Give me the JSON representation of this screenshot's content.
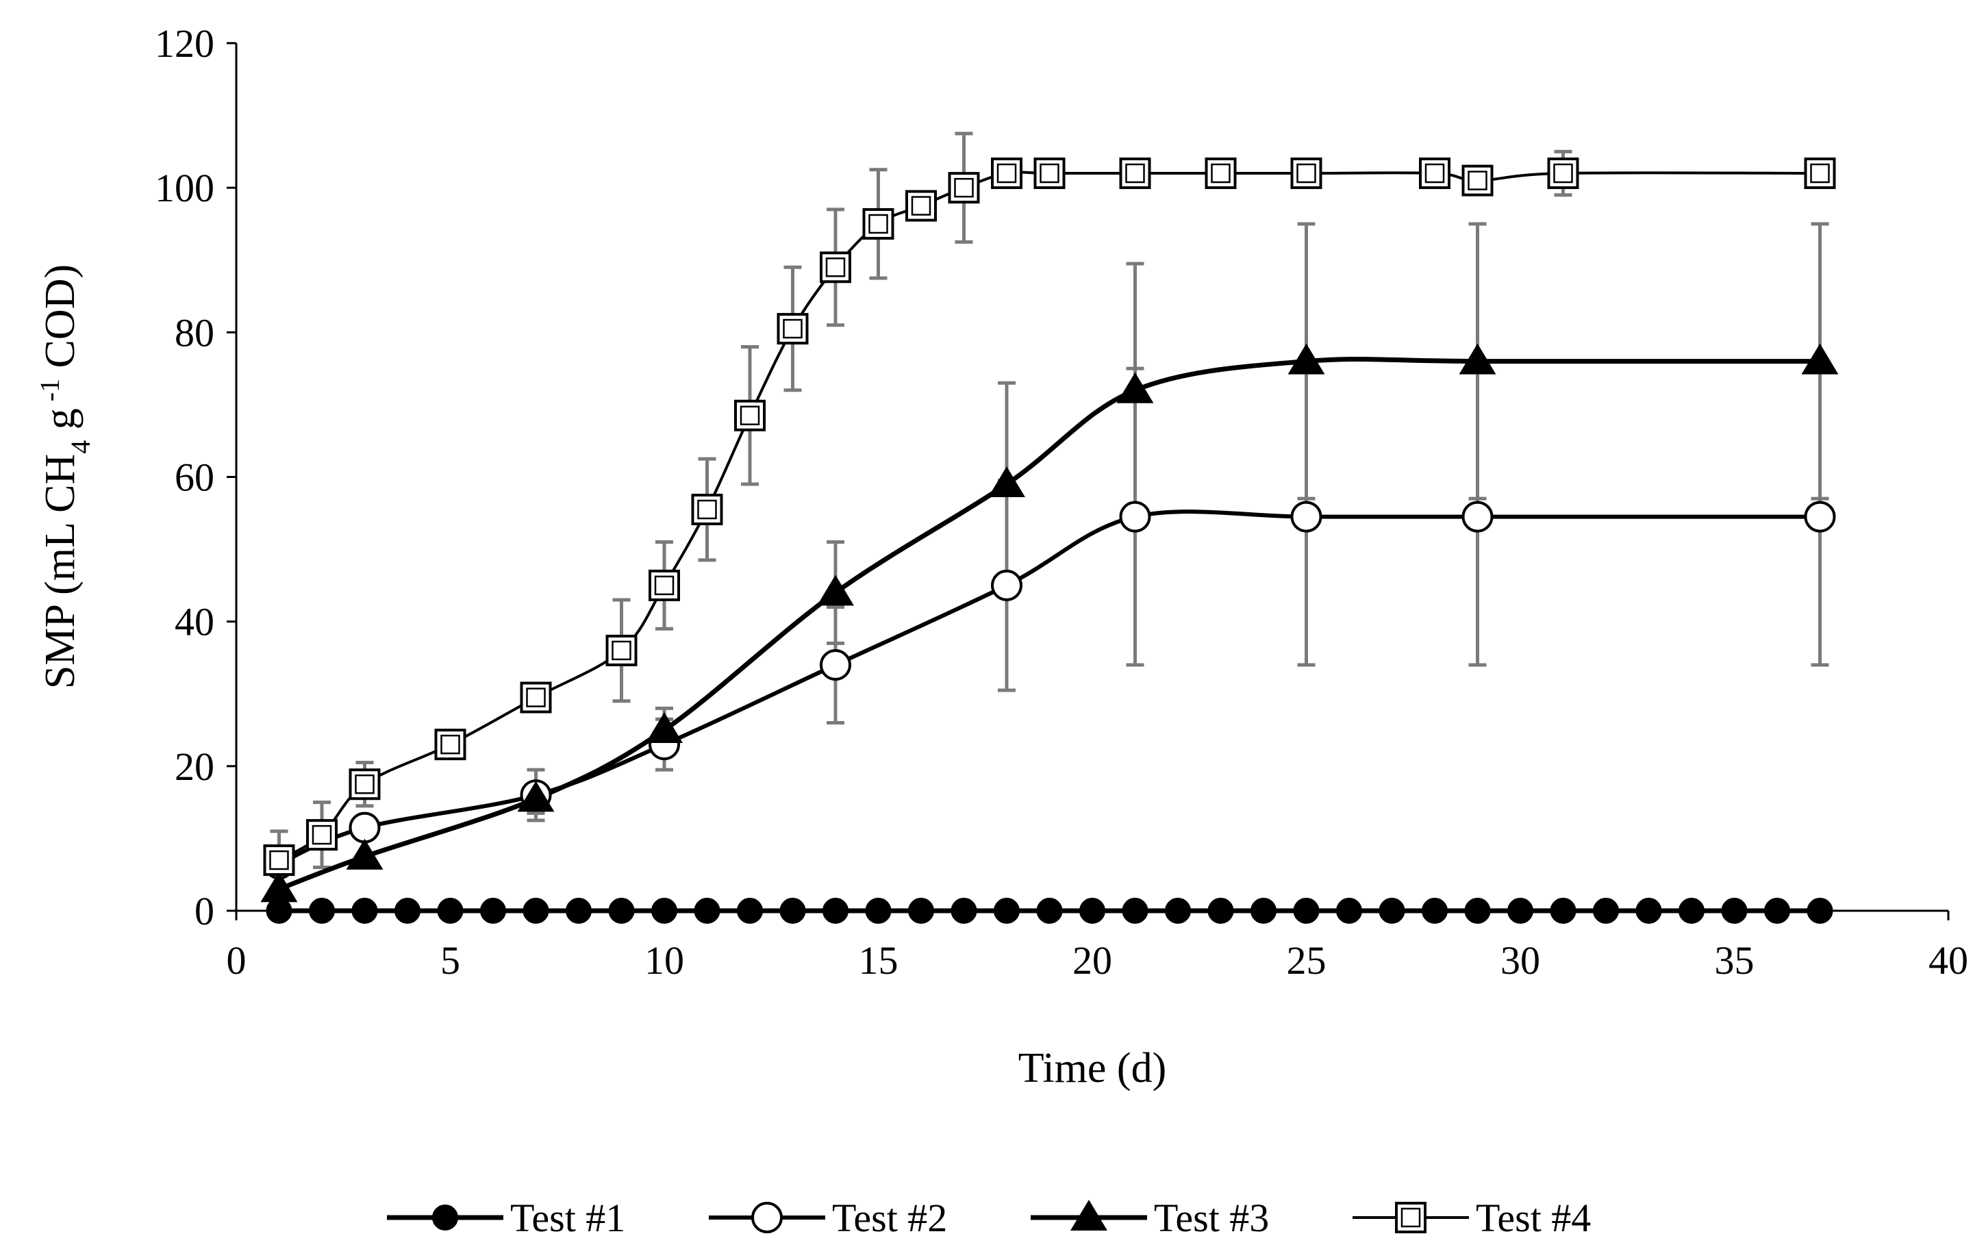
{
  "chart_data": {
    "type": "line",
    "title": "",
    "xlabel": "Time (d)",
    "ylabel": {
      "prefix": "SMP (mL CH",
      "sub": "4",
      "mid": " g",
      "sup": " -1",
      "suffix": " COD)"
    },
    "xlim": [
      0,
      40
    ],
    "ylim": [
      0,
      120
    ],
    "xticks": [
      0,
      5,
      10,
      15,
      20,
      25,
      30,
      35,
      40
    ],
    "yticks": [
      0,
      20,
      40,
      60,
      80,
      100,
      120
    ],
    "legend_position": "bottom",
    "series": [
      {
        "name": "Test #1",
        "marker": "filled-circle",
        "x": [
          1,
          2,
          3,
          4,
          5,
          6,
          7,
          8,
          9,
          10,
          11,
          12,
          13,
          14,
          15,
          16,
          17,
          18,
          19,
          20,
          21,
          22,
          23,
          24,
          25,
          26,
          27,
          28,
          29,
          30,
          31,
          32,
          33,
          34,
          35,
          36,
          37
        ],
        "y": [
          0,
          0,
          0,
          0,
          0,
          0,
          0,
          0,
          0,
          0,
          0,
          0,
          0,
          0,
          0,
          0,
          0,
          0,
          0,
          0,
          0,
          0,
          0,
          0,
          0,
          0,
          0,
          0,
          0,
          0,
          0,
          0,
          0,
          0,
          0,
          0,
          0
        ],
        "err": []
      },
      {
        "name": "Test #2",
        "marker": "open-circle",
        "x": [
          1,
          3,
          7,
          10,
          14,
          18,
          21,
          25,
          29,
          37
        ],
        "y": [
          6.5,
          11.5,
          16,
          23,
          34,
          45,
          54.5,
          54.5,
          54.5,
          54.5
        ],
        "err": [
          0,
          0,
          3.5,
          3.5,
          8,
          14.5,
          20.5,
          20.5,
          20.5,
          20.5
        ]
      },
      {
        "name": "Test #3",
        "marker": "filled-triangle",
        "x": [
          1,
          3,
          7,
          10,
          14,
          18,
          21,
          25,
          29,
          37
        ],
        "y": [
          3,
          7.5,
          15.5,
          25,
          44,
          59,
          72,
          76,
          76,
          76
        ],
        "err": [
          0,
          0,
          2,
          3,
          7,
          14,
          17.5,
          19,
          19,
          19
        ]
      },
      {
        "name": "Test #4",
        "marker": "open-square",
        "x": [
          1,
          2,
          3,
          5,
          7,
          9,
          10,
          11,
          12,
          13,
          14,
          15,
          16,
          17,
          18,
          19,
          21,
          23,
          25,
          28,
          29,
          31,
          37
        ],
        "y": [
          7,
          10.5,
          17.5,
          23,
          29.5,
          36,
          45,
          55.5,
          68.5,
          80.5,
          89,
          95,
          97.5,
          100,
          102,
          102,
          102,
          102,
          102,
          102,
          101,
          102,
          102
        ],
        "err": [
          4,
          4.5,
          3,
          1,
          1.5,
          7,
          6,
          7,
          9.5,
          8.5,
          8,
          7.5,
          1,
          7.5,
          1.5,
          1.5,
          1.5,
          1.5,
          1.5,
          1.5,
          0,
          3,
          0
        ]
      }
    ]
  }
}
